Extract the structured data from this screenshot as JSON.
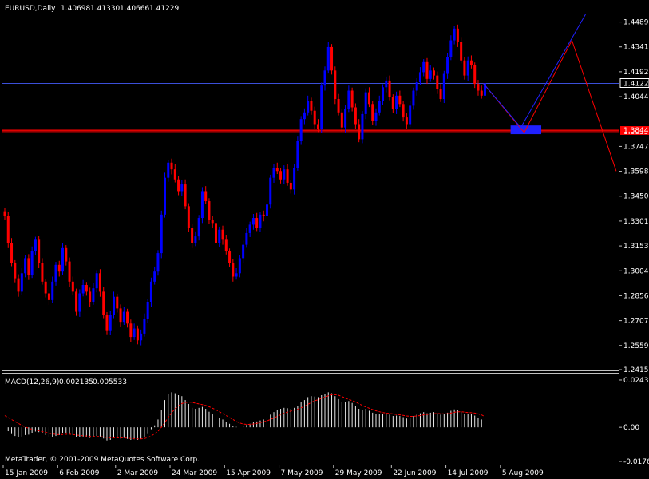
{
  "colors": {
    "background": "#000000",
    "frame": "#c0c0c0",
    "bull": "#0000ff",
    "bear": "#ff0000",
    "price_line": "#3b4fd9",
    "hline": "#ff0000",
    "zone": "#2020ff",
    "macd_hist": "#e8e8e8",
    "macd_signal": "#ff0000",
    "text": "#ffffff",
    "tag_bg": "#ff0000",
    "price_tag_bg": "#000000"
  },
  "header": {
    "symbol": "EURUSD,Daily",
    "open": "1.40698",
    "high": "1.41330",
    "low": "1.40666",
    "close": "1.41229"
  },
  "macd_header": {
    "label": "MACD(12,26,9)",
    "main": "0.002135",
    "signal": "0.005533"
  },
  "copyright": "MetaTrader, © 2001-2009 MetaQuotes Software Corp.",
  "chart_data": {
    "type": "candlestick",
    "price_axis": {
      "range": [
        1.2415,
        1.4535
      ],
      "ticks": [
        "1.44895",
        "1.43410",
        "1.41925",
        "1.40440",
        "1.37470",
        "1.35985",
        "1.34500",
        "1.33015",
        "1.31530",
        "1.30045",
        "1.28560",
        "1.27075",
        "1.25590",
        "1.24150"
      ]
    },
    "current_price": "1.41229",
    "horizontal_levels": [
      "1.38425",
      "1.38350",
      "1.38441"
    ],
    "date_ticks": [
      "15 Jan 2009",
      "6 Feb 2009",
      "2 Mar 2009",
      "24 Mar 2009",
      "15 Apr 2009",
      "7 May 2009",
      "29 May 2009",
      "22 Jun 2009",
      "14 Jul 2009",
      "5 Aug 2009"
    ],
    "close_series": [
      1.333,
      1.317,
      1.305,
      1.296,
      1.288,
      1.299,
      1.308,
      1.298,
      1.312,
      1.319,
      1.305,
      1.294,
      1.287,
      1.283,
      1.294,
      1.304,
      1.3,
      1.314,
      1.306,
      1.294,
      1.288,
      1.276,
      1.287,
      1.292,
      1.288,
      1.282,
      1.29,
      1.299,
      1.288,
      1.274,
      1.265,
      1.274,
      1.285,
      1.278,
      1.27,
      1.276,
      1.269,
      1.261,
      1.266,
      1.259,
      1.263,
      1.272,
      1.282,
      1.294,
      1.3,
      1.311,
      1.334,
      1.356,
      1.365,
      1.361,
      1.355,
      1.348,
      1.352,
      1.339,
      1.326,
      1.317,
      1.321,
      1.332,
      1.348,
      1.342,
      1.331,
      1.329,
      1.317,
      1.325,
      1.319,
      1.312,
      1.305,
      1.297,
      1.299,
      1.308,
      1.316,
      1.323,
      1.328,
      1.332,
      1.326,
      1.334,
      1.333,
      1.34,
      1.356,
      1.362,
      1.36,
      1.355,
      1.361,
      1.353,
      1.349,
      1.362,
      1.378,
      1.391,
      1.395,
      1.402,
      1.396,
      1.388,
      1.385,
      1.411,
      1.42,
      1.434,
      1.42,
      1.403,
      1.395,
      1.386,
      1.397,
      1.408,
      1.398,
      1.388,
      1.379,
      1.394,
      1.407,
      1.4,
      1.39,
      1.395,
      1.402,
      1.41,
      1.414,
      1.404,
      1.397,
      1.405,
      1.4,
      1.392,
      1.388,
      1.399,
      1.408,
      1.413,
      1.419,
      1.425,
      1.415,
      1.42,
      1.417,
      1.409,
      1.403,
      1.418,
      1.428,
      1.438,
      1.445,
      1.437,
      1.426,
      1.417,
      1.426,
      1.423,
      1.412,
      1.408,
      1.405,
      1.4123
    ],
    "projection": {
      "blue_path": [
        [
          141,
          1.4123
        ],
        [
          152,
          1.386
        ],
        [
          171,
          1.4535
        ]
      ],
      "red_path": [
        [
          141,
          1.4123
        ],
        [
          153,
          1.383
        ],
        [
          167,
          1.438
        ],
        [
          180,
          1.36
        ]
      ],
      "zone": {
        "from_index": 149,
        "to_index": 158,
        "top": 1.3872,
        "bottom": 1.382
      }
    },
    "macd": {
      "axis_ticks": [
        "0.024308",
        "0.00",
        "-0.017602"
      ],
      "range": [
        -0.0176,
        0.0243
      ],
      "hist": [
        0.0,
        -0.002,
        -0.0035,
        -0.0045,
        -0.005,
        -0.0048,
        -0.004,
        -0.0038,
        -0.003,
        -0.0022,
        -0.0025,
        -0.0032,
        -0.004,
        -0.005,
        -0.0052,
        -0.0045,
        -0.004,
        -0.003,
        -0.0028,
        -0.0034,
        -0.004,
        -0.005,
        -0.0052,
        -0.0048,
        -0.005,
        -0.0055,
        -0.0052,
        -0.0045,
        -0.0048,
        -0.0058,
        -0.0068,
        -0.0065,
        -0.0055,
        -0.0052,
        -0.0058,
        -0.0055,
        -0.006,
        -0.0065,
        -0.0062,
        -0.0065,
        -0.006,
        -0.005,
        -0.0035,
        -0.001,
        0.001,
        0.004,
        0.009,
        0.014,
        0.017,
        0.018,
        0.0175,
        0.0165,
        0.016,
        0.014,
        0.012,
        0.01,
        0.0095,
        0.01,
        0.0105,
        0.0095,
        0.008,
        0.007,
        0.0055,
        0.005,
        0.004,
        0.0028,
        0.0018,
        0.0008,
        0.0002,
        0.0,
        0.0005,
        0.0012,
        0.0018,
        0.0025,
        0.003,
        0.0035,
        0.004,
        0.005,
        0.0065,
        0.0078,
        0.009,
        0.0095,
        0.01,
        0.0098,
        0.0095,
        0.01,
        0.011,
        0.013,
        0.014,
        0.0155,
        0.016,
        0.0158,
        0.0155,
        0.0165,
        0.017,
        0.018,
        0.0175,
        0.016,
        0.0145,
        0.013,
        0.013,
        0.0135,
        0.0125,
        0.011,
        0.0095,
        0.009,
        0.0095,
        0.0085,
        0.0075,
        0.007,
        0.0068,
        0.007,
        0.0072,
        0.0065,
        0.0058,
        0.006,
        0.0058,
        0.0052,
        0.0045,
        0.005,
        0.0058,
        0.0065,
        0.0072,
        0.0078,
        0.0072,
        0.0075,
        0.0078,
        0.0072,
        0.0065,
        0.0068,
        0.0075,
        0.0085,
        0.0092,
        0.0088,
        0.0078,
        0.0068,
        0.007,
        0.0068,
        0.006,
        0.005,
        0.004,
        0.0021
      ],
      "signal": [
        0.006,
        0.005,
        0.004,
        0.003,
        0.002,
        0.001,
        0.0002,
        -0.0005,
        -0.001,
        -0.0014,
        -0.0018,
        -0.0022,
        -0.0026,
        -0.003,
        -0.0034,
        -0.0037,
        -0.0038,
        -0.0037,
        -0.0036,
        -0.0036,
        -0.0037,
        -0.004,
        -0.0042,
        -0.0044,
        -0.0045,
        -0.0047,
        -0.0048,
        -0.0048,
        -0.0048,
        -0.005,
        -0.0053,
        -0.0055,
        -0.0055,
        -0.0055,
        -0.0055,
        -0.0055,
        -0.0056,
        -0.0058,
        -0.0059,
        -0.006,
        -0.006,
        -0.0058,
        -0.0053,
        -0.0045,
        -0.0034,
        -0.002,
        0.0,
        0.0025,
        0.005,
        0.0075,
        0.0095,
        0.011,
        0.0122,
        0.0128,
        0.013,
        0.0128,
        0.0124,
        0.012,
        0.0117,
        0.0112,
        0.0106,
        0.0098,
        0.009,
        0.008,
        0.007,
        0.006,
        0.005,
        0.004,
        0.003,
        0.0022,
        0.0017,
        0.0015,
        0.0015,
        0.0017,
        0.002,
        0.0024,
        0.0028,
        0.0033,
        0.004,
        0.0048,
        0.0056,
        0.0064,
        0.0072,
        0.0078,
        0.0083,
        0.0088,
        0.0093,
        0.01,
        0.0108,
        0.0118,
        0.0128,
        0.0136,
        0.0142,
        0.0148,
        0.0155,
        0.0162,
        0.0167,
        0.0168,
        0.0165,
        0.0158,
        0.015,
        0.0143,
        0.0137,
        0.013,
        0.0121,
        0.0112,
        0.0105,
        0.0098,
        0.0091,
        0.0085,
        0.008,
        0.0076,
        0.0073,
        0.0071,
        0.0069,
        0.0066,
        0.0064,
        0.0061,
        0.0058,
        0.0056,
        0.0056,
        0.0058,
        0.006,
        0.0064,
        0.0066,
        0.0068,
        0.007,
        0.0071,
        0.007,
        0.0069,
        0.007,
        0.0073,
        0.0077,
        0.008,
        0.008,
        0.0078,
        0.0076,
        0.0075,
        0.0073,
        0.0069,
        0.0064,
        0.0055
      ]
    }
  }
}
